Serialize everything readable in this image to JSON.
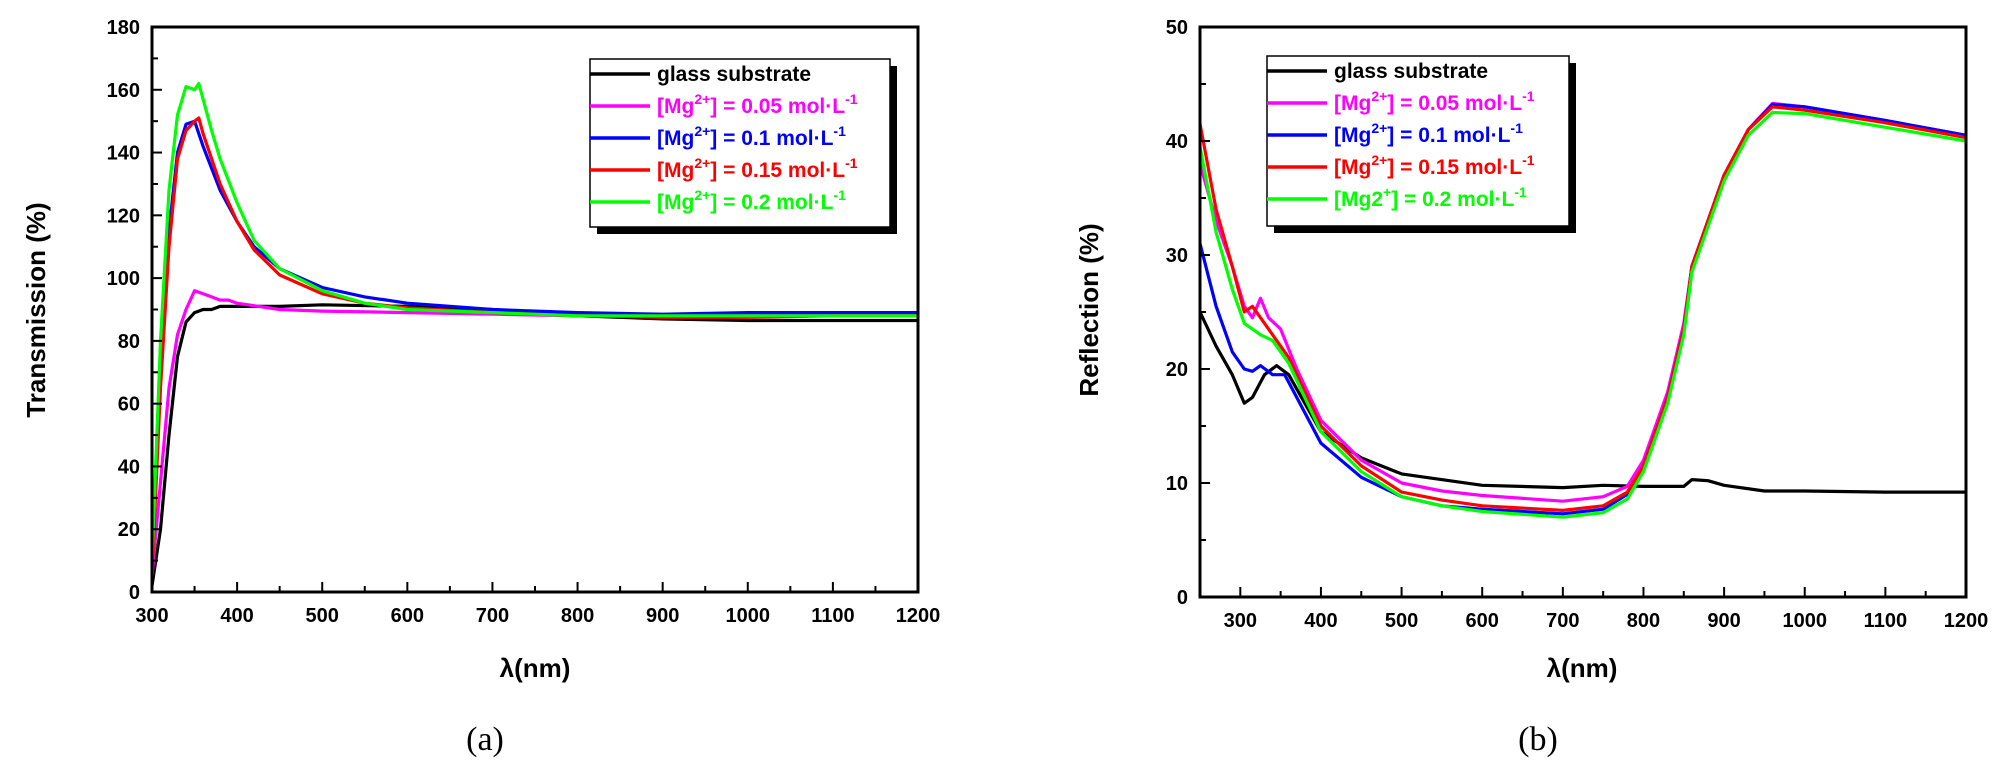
{
  "chart_data": [
    {
      "type": "line",
      "label": "(a)",
      "xlabel": "λ(nm)",
      "ylabel": "Transmission (%)",
      "xlim": [
        300,
        1200
      ],
      "ylim": [
        0,
        180
      ],
      "xticks": [
        300,
        400,
        500,
        600,
        700,
        800,
        900,
        1000,
        1100,
        1200
      ],
      "yticks": [
        0,
        20,
        40,
        60,
        80,
        100,
        120,
        140,
        160,
        180
      ],
      "legend_position": "top-right",
      "series": [
        {
          "name": "glass substrate",
          "legend": {
            "base": "glass substrate"
          },
          "color": "#000000",
          "points": [
            [
              300,
              2
            ],
            [
              310,
              20
            ],
            [
              320,
              50
            ],
            [
              330,
              75
            ],
            [
              340,
              86
            ],
            [
              350,
              89
            ],
            [
              360,
              90
            ],
            [
              370,
              90
            ],
            [
              380,
              91
            ],
            [
              400,
              91
            ],
            [
              450,
              91
            ],
            [
              500,
              91.5
            ],
            [
              600,
              91
            ],
            [
              700,
              90
            ],
            [
              800,
              88
            ],
            [
              900,
              87
            ],
            [
              1000,
              86.5
            ],
            [
              1100,
              86.5
            ],
            [
              1200,
              86.5
            ]
          ]
        },
        {
          "name": "[Mg2+] = 0.05 mol·L-1",
          "legend": {
            "pre": "[Mg",
            "sup1": "2+",
            "mid": "] = 0.05 mol·L",
            "sup2": "-1"
          },
          "color": "#ff00ff",
          "points": [
            [
              300,
              5
            ],
            [
              310,
              35
            ],
            [
              320,
              65
            ],
            [
              330,
              82
            ],
            [
              340,
              90
            ],
            [
              350,
              96
            ],
            [
              360,
              95
            ],
            [
              370,
              94
            ],
            [
              380,
              93
            ],
            [
              390,
              93
            ],
            [
              400,
              92
            ],
            [
              450,
              90
            ],
            [
              500,
              89.5
            ],
            [
              600,
              89
            ],
            [
              700,
              88.5
            ],
            [
              800,
              88
            ],
            [
              900,
              88
            ],
            [
              1000,
              88.5
            ],
            [
              1100,
              88.5
            ],
            [
              1200,
              88.5
            ]
          ]
        },
        {
          "name": "[Mg2+] = 0.1 mol·L-1",
          "legend": {
            "pre": "[Mg",
            "sup1": "2+",
            "mid": "] = 0.1 mol·L",
            "sup2": "-1"
          },
          "color": "#0000ff",
          "points": [
            [
              300,
              8
            ],
            [
              310,
              70
            ],
            [
              320,
              115
            ],
            [
              330,
              140
            ],
            [
              340,
              149
            ],
            [
              350,
              150
            ],
            [
              360,
              142
            ],
            [
              370,
              135
            ],
            [
              380,
              128
            ],
            [
              400,
              118
            ],
            [
              420,
              110
            ],
            [
              450,
              103
            ],
            [
              500,
              97
            ],
            [
              550,
              94
            ],
            [
              600,
              92
            ],
            [
              700,
              90
            ],
            [
              800,
              89
            ],
            [
              900,
              88.5
            ],
            [
              1000,
              89
            ],
            [
              1100,
              89
            ],
            [
              1200,
              89
            ]
          ]
        },
        {
          "name": "[Mg2+] = 0.15 mol·L-1",
          "legend": {
            "pre": "[Mg",
            "sup1": "2+",
            "mid": "] = 0.15 mol·L",
            "sup2": "-1"
          },
          "color": "#ff0000",
          "points": [
            [
              300,
              6
            ],
            [
              310,
              65
            ],
            [
              320,
              110
            ],
            [
              330,
              138
            ],
            [
              340,
              147
            ],
            [
              350,
              150
            ],
            [
              355,
              151
            ],
            [
              360,
              146
            ],
            [
              370,
              138
            ],
            [
              380,
              130
            ],
            [
              400,
              118
            ],
            [
              420,
              109
            ],
            [
              450,
              101
            ],
            [
              500,
              95
            ],
            [
              550,
              92
            ],
            [
              600,
              90.5
            ],
            [
              700,
              89
            ],
            [
              800,
              88
            ],
            [
              900,
              87.5
            ],
            [
              1000,
              87.5
            ],
            [
              1100,
              88
            ],
            [
              1200,
              88
            ]
          ]
        },
        {
          "name": "[Mg2+] = 0.2 mol·L-1",
          "legend": {
            "pre": "[Mg",
            "sup1": "2+",
            "mid": "] = 0.2 mol·L",
            "sup2": "-1"
          },
          "color": "#00ff00",
          "points": [
            [
              300,
              10
            ],
            [
              310,
              80
            ],
            [
              320,
              128
            ],
            [
              330,
              152
            ],
            [
              340,
              161
            ],
            [
              350,
              160
            ],
            [
              355,
              162
            ],
            [
              360,
              157
            ],
            [
              370,
              147
            ],
            [
              380,
              138
            ],
            [
              400,
              124
            ],
            [
              420,
              112
            ],
            [
              450,
              103
            ],
            [
              500,
              96
            ],
            [
              550,
              92
            ],
            [
              600,
              90
            ],
            [
              700,
              89
            ],
            [
              800,
              88
            ],
            [
              900,
              88
            ],
            [
              1000,
              88
            ],
            [
              1100,
              88
            ],
            [
              1200,
              88
            ]
          ]
        }
      ]
    },
    {
      "type": "line",
      "label": "(b)",
      "xlabel": "λ(nm)",
      "ylabel": "Reflection (%)",
      "xlim": [
        250,
        1200
      ],
      "ylim": [
        0,
        50
      ],
      "xticks": [
        300,
        400,
        500,
        600,
        700,
        800,
        900,
        1000,
        1100,
        1200
      ],
      "yticks": [
        0,
        10,
        20,
        30,
        40,
        50
      ],
      "legend_position": "top-left",
      "series": [
        {
          "name": "glass substrate",
          "legend": {
            "base": "glass substrate"
          },
          "color": "#000000",
          "points": [
            [
              250,
              25
            ],
            [
              270,
              22
            ],
            [
              290,
              19.5
            ],
            [
              305,
              17
            ],
            [
              315,
              17.5
            ],
            [
              330,
              19.5
            ],
            [
              345,
              20.3
            ],
            [
              360,
              19.5
            ],
            [
              380,
              17
            ],
            [
              400,
              14.5
            ],
            [
              450,
              12.2
            ],
            [
              500,
              10.8
            ],
            [
              600,
              9.8
            ],
            [
              700,
              9.6
            ],
            [
              750,
              9.8
            ],
            [
              800,
              9.7
            ],
            [
              850,
              9.7
            ],
            [
              860,
              10.3
            ],
            [
              880,
              10.2
            ],
            [
              900,
              9.8
            ],
            [
              950,
              9.3
            ],
            [
              1000,
              9.3
            ],
            [
              1100,
              9.2
            ],
            [
              1200,
              9.2
            ]
          ]
        },
        {
          "name": "[Mg2+] = 0.05 mol·L-1",
          "legend": {
            "pre": "[Mg",
            "sup1": "2+",
            "mid": "] = 0.05 mol·L",
            "sup2": "-1"
          },
          "color": "#ff00ff",
          "points": [
            [
              250,
              38
            ],
            [
              270,
              33
            ],
            [
              290,
              29
            ],
            [
              305,
              25.5
            ],
            [
              315,
              24.5
            ],
            [
              325,
              26.2
            ],
            [
              335,
              24.5
            ],
            [
              350,
              23.5
            ],
            [
              370,
              20
            ],
            [
              400,
              15.5
            ],
            [
              450,
              12
            ],
            [
              500,
              10
            ],
            [
              550,
              9.3
            ],
            [
              600,
              8.9
            ],
            [
              700,
              8.4
            ],
            [
              750,
              8.8
            ],
            [
              780,
              9.7
            ],
            [
              800,
              12
            ],
            [
              830,
              18
            ],
            [
              850,
              24
            ],
            [
              860,
              29
            ],
            [
              880,
              33
            ],
            [
              900,
              37
            ],
            [
              930,
              41
            ],
            [
              960,
              43.3
            ],
            [
              1000,
              43
            ],
            [
              1100,
              41.8
            ],
            [
              1200,
              40.5
            ]
          ]
        },
        {
          "name": "[Mg2+] = 0.1 mol·L-1",
          "legend": {
            "pre": "[Mg",
            "sup1": "2+",
            "mid": "] = 0.1 mol·L",
            "sup2": "-1"
          },
          "color": "#0000ff",
          "points": [
            [
              250,
              31
            ],
            [
              270,
              25.5
            ],
            [
              290,
              21.5
            ],
            [
              305,
              20
            ],
            [
              315,
              19.8
            ],
            [
              325,
              20.3
            ],
            [
              340,
              19.5
            ],
            [
              355,
              19.5
            ],
            [
              370,
              17.5
            ],
            [
              400,
              13.5
            ],
            [
              450,
              10.5
            ],
            [
              500,
              8.8
            ],
            [
              550,
              8
            ],
            [
              600,
              7.7
            ],
            [
              700,
              7.3
            ],
            [
              750,
              7.7
            ],
            [
              780,
              9
            ],
            [
              800,
              11.5
            ],
            [
              830,
              17.5
            ],
            [
              850,
              23.5
            ],
            [
              860,
              29
            ],
            [
              880,
              33
            ],
            [
              900,
              37
            ],
            [
              930,
              41
            ],
            [
              960,
              43.2
            ],
            [
              1000,
              43
            ],
            [
              1100,
              41.8
            ],
            [
              1200,
              40.5
            ]
          ]
        },
        {
          "name": "[Mg2+] = 0.15 mol·L-1",
          "legend": {
            "pre": "[Mg",
            "sup1": "2+",
            "mid": "] = 0.15 mol·L",
            "sup2": "-1"
          },
          "color": "#ff0000",
          "points": [
            [
              250,
              41.5
            ],
            [
              270,
              34
            ],
            [
              290,
              29
            ],
            [
              305,
              25
            ],
            [
              315,
              25.5
            ],
            [
              325,
              24.5
            ],
            [
              340,
              23
            ],
            [
              360,
              21
            ],
            [
              380,
              18
            ],
            [
              400,
              15
            ],
            [
              450,
              11.5
            ],
            [
              500,
              9.2
            ],
            [
              550,
              8.5
            ],
            [
              600,
              8
            ],
            [
              700,
              7.6
            ],
            [
              750,
              8
            ],
            [
              780,
              9.2
            ],
            [
              800,
              11.5
            ],
            [
              830,
              17.5
            ],
            [
              850,
              23.5
            ],
            [
              860,
              29
            ],
            [
              880,
              33
            ],
            [
              900,
              37
            ],
            [
              930,
              41
            ],
            [
              960,
              43
            ],
            [
              1000,
              42.7
            ],
            [
              1100,
              41.6
            ],
            [
              1200,
              40.3
            ]
          ]
        },
        {
          "name": "[Mg2+] = 0.2 mol·L-1",
          "legend": {
            "pre": "[Mg2",
            "sup1": "+",
            "mid": "]  = 0.2 mol·L",
            "sup2": "-1"
          },
          "color": "#00ff00",
          "points": [
            [
              250,
              39.5
            ],
            [
              270,
              32
            ],
            [
              290,
              27
            ],
            [
              305,
              24
            ],
            [
              315,
              23.5
            ],
            [
              325,
              23
            ],
            [
              340,
              22.5
            ],
            [
              360,
              20.5
            ],
            [
              380,
              17.5
            ],
            [
              400,
              14.5
            ],
            [
              450,
              11
            ],
            [
              500,
              8.8
            ],
            [
              550,
              8
            ],
            [
              600,
              7.5
            ],
            [
              700,
              7
            ],
            [
              750,
              7.4
            ],
            [
              780,
              8.6
            ],
            [
              800,
              11
            ],
            [
              830,
              17
            ],
            [
              850,
              23
            ],
            [
              860,
              28.5
            ],
            [
              880,
              32.5
            ],
            [
              900,
              36.5
            ],
            [
              930,
              40.5
            ],
            [
              960,
              42.5
            ],
            [
              1000,
              42.4
            ],
            [
              1100,
              41.2
            ],
            [
              1200,
              40
            ]
          ]
        }
      ]
    }
  ]
}
